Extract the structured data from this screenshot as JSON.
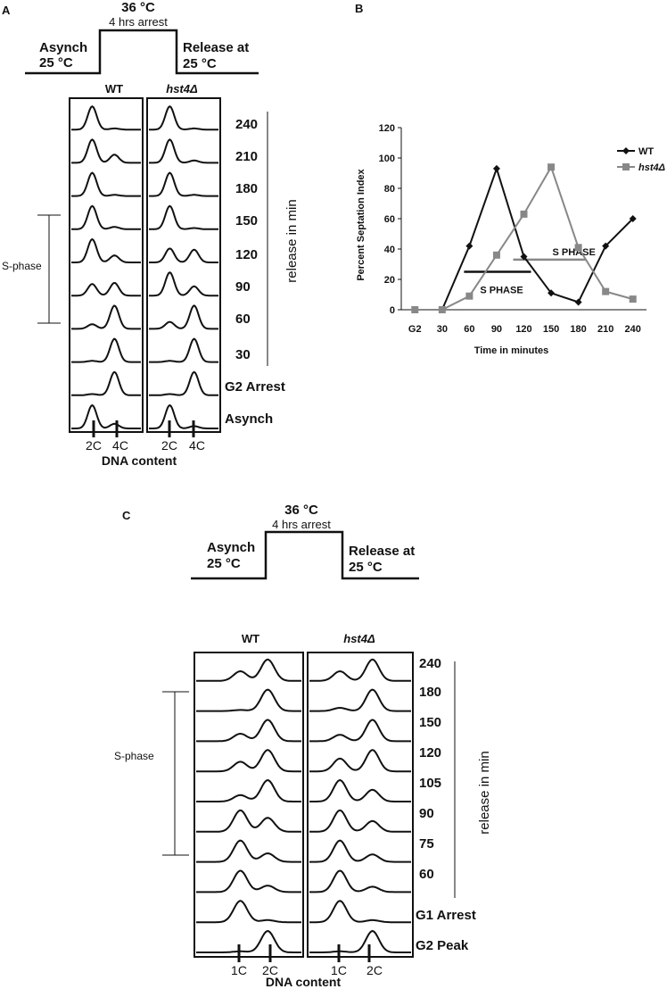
{
  "panel_a": {
    "letter": "A",
    "protocol": {
      "temp": "36 °C",
      "arrest": "4 hrs arrest",
      "left_line1": "Asynch",
      "left_line2": "25 °C",
      "right_line1": "Release at",
      "right_line2": "25 °C"
    },
    "col_wt": "WT",
    "col_mut": "hst4Δ",
    "row_labels": [
      "240",
      "210",
      "180",
      "150",
      "120",
      "90",
      "60",
      "30",
      "G2 Arrest",
      "Asynch"
    ],
    "side_label": "S-phase",
    "release_label": "release in min",
    "tick_2c": "2C",
    "tick_4c": "4C",
    "xlabel": "DNA content"
  },
  "panel_b": {
    "letter": "B",
    "sphase_label": "S PHASE"
  },
  "panel_c": {
    "letter": "C",
    "protocol": {
      "temp": "36 °C",
      "arrest": "4 hrs arrest",
      "left_line1": "Asynch",
      "left_line2": "25 °C",
      "right_line1": "Release at",
      "right_line2": "25 °C"
    },
    "col_wt": "WT",
    "col_mut": "hst4Δ",
    "row_labels": [
      "240",
      "180",
      "150",
      "120",
      "105",
      "90",
      "75",
      "60",
      "G1 Arrest",
      "G2 Peak"
    ],
    "side_label": "S-phase",
    "release_label": "release in min",
    "tick_1c": "1C",
    "tick_2c": "2C",
    "xlabel": "DNA content"
  },
  "chart_data": [
    {
      "type": "line",
      "title": "",
      "xlabel": "Time in minutes",
      "ylabel": "Percent Septation Index",
      "categories": [
        "G2",
        "30",
        "60",
        "90",
        "120",
        "150",
        "180",
        "210",
        "240"
      ],
      "ylim": [
        0,
        120
      ],
      "yticks": [
        "0",
        "20",
        "40",
        "60",
        "80",
        "100",
        "120"
      ],
      "grid": false,
      "legend": "top-right",
      "series": [
        {
          "name": "WT",
          "color": "#111111",
          "marker": "diamond",
          "values": [
            0,
            0,
            42,
            93,
            35,
            11,
            5,
            42,
            60
          ]
        },
        {
          "name": "hst4Δ",
          "color": "#888888",
          "marker": "square",
          "values": [
            0,
            0,
            9,
            36,
            63,
            94,
            41,
            12,
            7
          ]
        }
      ]
    },
    {
      "type": "line",
      "title": "",
      "xlabel": "DNA content",
      "panel": "A",
      "columns": [
        "WT",
        "hst4Δ"
      ],
      "rows": [
        "240",
        "210",
        "180",
        "150",
        "120",
        "90",
        "60",
        "30",
        "G2 Arrest",
        "Asynch"
      ],
      "x_ticks": [
        "2C",
        "4C"
      ],
      "profiles": {
        "WT": [
          {
            "p1": 1,
            "p2": 0.05
          },
          {
            "p1": 1,
            "p2": 0.35
          },
          {
            "p1": 1,
            "p2": 0.05
          },
          {
            "p1": 1,
            "p2": 0.1
          },
          {
            "p1": 1,
            "p2": 0.3
          },
          {
            "p1": 0.5,
            "p2": 0.55
          },
          {
            "p1": 0.2,
            "p2": 1
          },
          {
            "p1": 0.05,
            "p2": 1
          },
          {
            "p1": 0.05,
            "p2": 1
          },
          {
            "p1": 1,
            "p2": 0.2
          }
        ],
        "hst4Δ": [
          {
            "p1": 1,
            "p2": 0.05
          },
          {
            "p1": 1,
            "p2": 0.1
          },
          {
            "p1": 1,
            "p2": 0.05
          },
          {
            "p1": 1,
            "p2": 0.05
          },
          {
            "p1": 0.6,
            "p2": 0.55
          },
          {
            "p1": 1,
            "p2": 0.4
          },
          {
            "p1": 0.3,
            "p2": 1
          },
          {
            "p1": 0.05,
            "p2": 1
          },
          {
            "p1": 0.05,
            "p2": 1
          },
          {
            "p1": 1,
            "p2": 0.1
          }
        ]
      }
    },
    {
      "type": "line",
      "title": "",
      "xlabel": "DNA content",
      "panel": "C",
      "columns": [
        "WT",
        "hst4Δ"
      ],
      "rows": [
        "240",
        "180",
        "150",
        "120",
        "105",
        "90",
        "75",
        "60",
        "G1 Arrest",
        "G2 Peak"
      ],
      "x_ticks": [
        "1C",
        "2C"
      ],
      "profiles": {
        "WT": [
          {
            "p1": 0.45,
            "p2": 1
          },
          {
            "p1": 0.05,
            "p2": 1
          },
          {
            "p1": 0.35,
            "p2": 1
          },
          {
            "p1": 0.45,
            "p2": 1
          },
          {
            "p1": 0.3,
            "p2": 1
          },
          {
            "p1": 1,
            "p2": 0.65
          },
          {
            "p1": 1,
            "p2": 0.4
          },
          {
            "p1": 1,
            "p2": 0.3
          },
          {
            "p1": 1,
            "p2": 0.1
          },
          {
            "p1": 0.05,
            "p2": 1
          }
        ],
        "hst4Δ": [
          {
            "p1": 0.45,
            "p2": 1
          },
          {
            "p1": 0.15,
            "p2": 1
          },
          {
            "p1": 0.3,
            "p2": 1
          },
          {
            "p1": 0.6,
            "p2": 1
          },
          {
            "p1": 1,
            "p2": 0.55
          },
          {
            "p1": 1,
            "p2": 0.5
          },
          {
            "p1": 1,
            "p2": 0.35
          },
          {
            "p1": 1,
            "p2": 0.25
          },
          {
            "p1": 1,
            "p2": 0.1
          },
          {
            "p1": 0.05,
            "p2": 1
          }
        ]
      }
    }
  ]
}
